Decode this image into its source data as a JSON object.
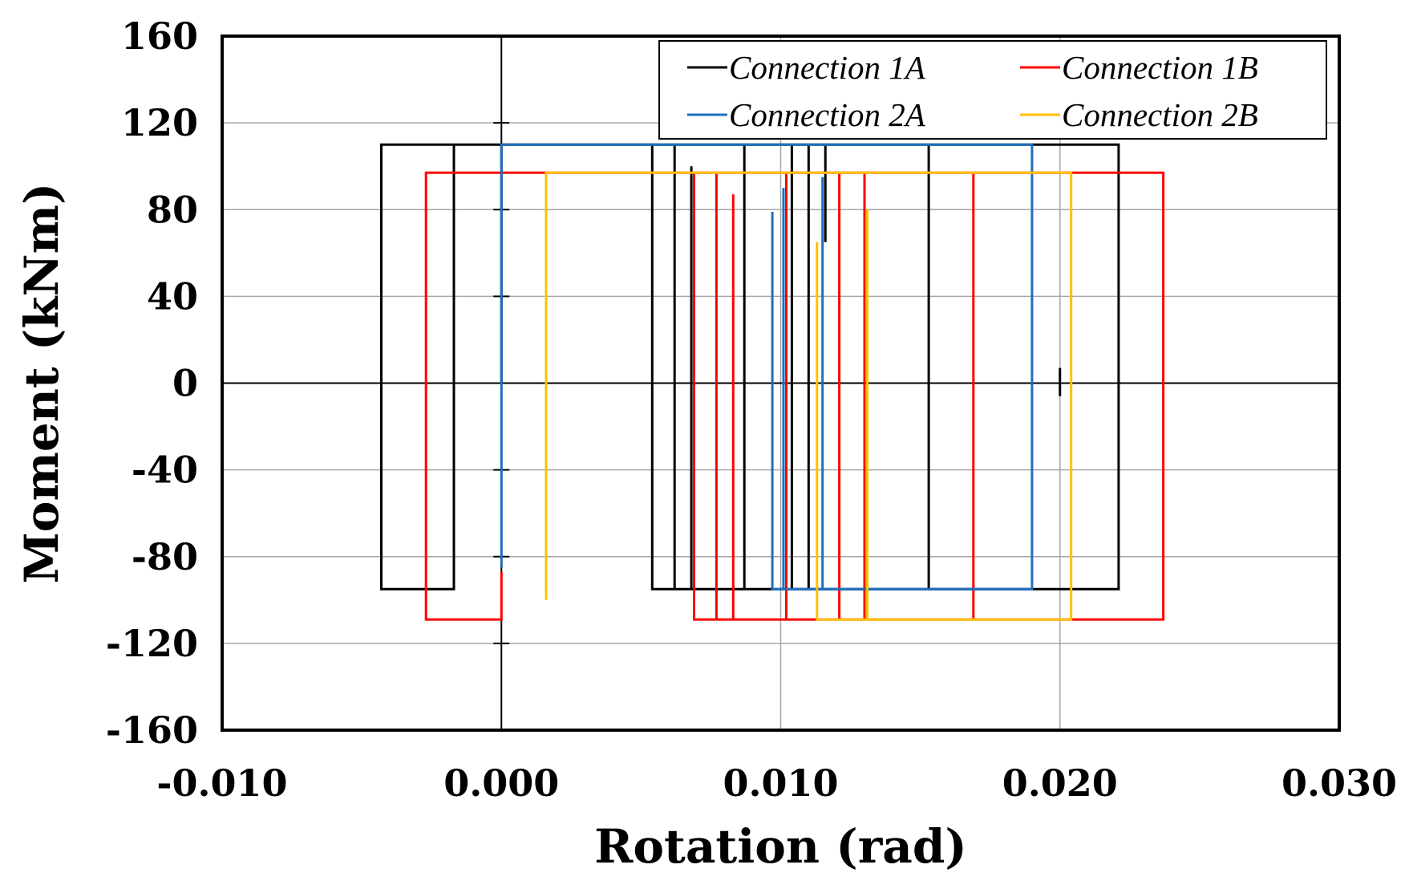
{
  "chart_data": {
    "type": "line",
    "title": "",
    "xlabel": "Rotation (rad)",
    "ylabel": "Moment (kNm)",
    "xlim": [
      -0.01,
      0.03
    ],
    "ylim": [
      -160,
      160
    ],
    "x_ticks": [
      -0.01,
      0.0,
      0.01,
      0.02,
      0.03
    ],
    "x_tick_labels": [
      "-0.010",
      "0.000",
      "0.010",
      "0.020",
      "0.030"
    ],
    "y_ticks": [
      160,
      120,
      80,
      40,
      0,
      -40,
      -80,
      -120,
      -160
    ],
    "y_tick_labels": [
      "160",
      "120",
      "80",
      "40",
      "0",
      "-40",
      "-80",
      "-120",
      "-160"
    ],
    "grid": true,
    "legend_position": "top-right",
    "series": [
      {
        "name": "Connection 1A",
        "color": "#000000",
        "points": [
          [
            0,
            0
          ],
          [
            0,
            110
          ],
          [
            0.0221,
            110
          ],
          [
            0.0221,
            -95
          ],
          [
            0.0153,
            -95
          ],
          [
            0.0153,
            110
          ],
          [
            0.0153,
            -95
          ],
          [
            0.0104,
            -95
          ],
          [
            0.0104,
            110
          ],
          [
            0.0104,
            -95
          ],
          [
            0.0087,
            -95
          ],
          [
            0.0087,
            110
          ],
          [
            0.0087,
            -82
          ],
          [
            0.0087,
            -95
          ],
          [
            0.0068,
            -95
          ],
          [
            0.0068,
            100
          ],
          [
            0.0068,
            -95
          ],
          [
            0.0062,
            -95
          ],
          [
            0.0062,
            110
          ],
          [
            0.0062,
            -95
          ],
          [
            0.0054,
            -95
          ],
          [
            0.0054,
            110
          ],
          [
            -0.0017,
            110
          ],
          [
            -0.0017,
            -95
          ],
          [
            -0.0043,
            -95
          ],
          [
            -0.0043,
            110
          ],
          [
            0.0,
            110
          ]
        ],
        "extra_segments": [
          [
            [
              0.011,
              110
            ],
            [
              0.011,
              -95
            ]
          ],
          [
            [
              0.0116,
              110
            ],
            [
              0.0116,
              65
            ]
          ],
          [
            [
              0.02,
              7
            ],
            [
              0.02,
              -6
            ]
          ]
        ]
      },
      {
        "name": "Connection 1B",
        "color": "#ff0000",
        "points": [
          [
            0,
            -87
          ],
          [
            0,
            -109
          ],
          [
            -0.0027,
            -109
          ],
          [
            -0.0027,
            97
          ],
          [
            0.0017,
            97
          ],
          [
            0.0017,
            97
          ],
          [
            0.0237,
            97
          ],
          [
            0.0237,
            -109
          ],
          [
            0.0169,
            -109
          ],
          [
            0.0169,
            97
          ],
          [
            0.0169,
            -109
          ],
          [
            0.013,
            -109
          ],
          [
            0.013,
            97
          ],
          [
            0.013,
            -109
          ],
          [
            0.0121,
            -109
          ],
          [
            0.0121,
            97
          ],
          [
            0.0121,
            -109
          ],
          [
            0.0102,
            -109
          ],
          [
            0.0102,
            97
          ],
          [
            0.0102,
            -109
          ],
          [
            0.0083,
            -109
          ],
          [
            0.0083,
            87
          ],
          [
            0.0083,
            -109
          ],
          [
            0.0077,
            -109
          ],
          [
            0.0077,
            97
          ],
          [
            0.0077,
            -109
          ],
          [
            0.0069,
            -109
          ],
          [
            0.0069,
            97
          ]
        ]
      },
      {
        "name": "Connection 2A",
        "color": "#1f6fbf",
        "points": [
          [
            0,
            -85
          ],
          [
            0,
            110
          ],
          [
            0.019,
            110
          ],
          [
            0.019,
            -95
          ],
          [
            0.0115,
            -95
          ],
          [
            0.0115,
            95
          ],
          [
            0.0115,
            -95
          ],
          [
            0.0101,
            -95
          ],
          [
            0.0101,
            90
          ],
          [
            0.0101,
            -95
          ],
          [
            0.0097,
            -95
          ],
          [
            0.0097,
            79
          ]
        ]
      },
      {
        "name": "Connection 2B",
        "color": "#ffc000",
        "points": [
          [
            0.0016,
            -100
          ],
          [
            0.0016,
            97
          ],
          [
            0.0204,
            97
          ],
          [
            0.0204,
            -109
          ],
          [
            0.0131,
            -109
          ],
          [
            0.0131,
            80
          ],
          [
            0.0131,
            -109
          ],
          [
            0.0113,
            -109
          ],
          [
            0.0113,
            65
          ]
        ]
      }
    ]
  }
}
